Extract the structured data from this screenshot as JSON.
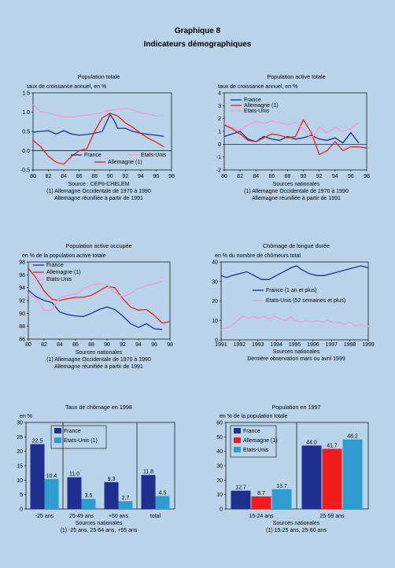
{
  "page": {
    "title": "Graphique 8",
    "subtitle": "Indicateurs démographiques"
  },
  "colors": {
    "france": "#1f2f8f",
    "allemagne": "#ee1c1c",
    "etatsunis": "#f39ad0",
    "etatsunis_bar": "#2f9ccf",
    "background": "#b9d3ea"
  },
  "chart_data": [
    {
      "id": "c1",
      "type": "line",
      "title": "Population totale",
      "ylabel": "taux de croissance annuel, en %",
      "ylim": [
        -0.5,
        1.5
      ],
      "yticks": [
        "-0.5",
        "0.0",
        "0.5",
        "1.0",
        "1.5"
      ],
      "xticks": [
        "80",
        "82",
        "84",
        "86",
        "88",
        "90",
        "92",
        "94",
        "96",
        "98"
      ],
      "series": [
        {
          "name": "France",
          "x": [
            80,
            81,
            82,
            83,
            84,
            85,
            86,
            87,
            88,
            89,
            90,
            90.5,
            91,
            92,
            93,
            94,
            95,
            96,
            97
          ],
          "values": [
            0.48,
            0.5,
            0.52,
            0.43,
            0.52,
            0.43,
            0.4,
            0.42,
            0.45,
            0.5,
            0.93,
            0.8,
            0.58,
            0.58,
            0.5,
            0.45,
            0.42,
            0.4,
            0.37
          ]
        },
        {
          "name": "Allemagne (1)",
          "x": [
            80,
            81,
            82,
            83,
            84,
            85,
            86,
            87,
            88,
            89,
            90,
            91,
            92,
            93,
            94,
            95,
            96,
            97
          ],
          "values": [
            0.27,
            0.1,
            -0.15,
            -0.3,
            -0.35,
            -0.15,
            0.0,
            0.05,
            0.5,
            0.85,
            0.97,
            0.9,
            0.72,
            0.6,
            0.45,
            0.32,
            0.22,
            0.1
          ]
        },
        {
          "name": "Etats-Unis",
          "x": [
            80,
            81,
            82,
            83,
            84,
            85,
            86,
            87,
            88,
            89,
            90,
            91,
            92,
            93,
            94,
            95,
            96,
            97
          ],
          "values": [
            1.2,
            1.0,
            0.98,
            0.92,
            0.88,
            0.88,
            0.9,
            0.92,
            0.95,
            0.98,
            1.05,
            1.08,
            1.1,
            1.05,
            0.98,
            0.95,
            0.9,
            0.9
          ]
        }
      ],
      "notes": [
        "Source : CEPII-CHELEM",
        "(1) Allemagne Occidentale de 1970 à 1990",
        "Allemagne réunifiée à partir de 1991"
      ]
    },
    {
      "id": "c2",
      "type": "line",
      "title": "Population active totale",
      "ylabel": "taux de croissance annuel, en %",
      "ylim": [
        -2,
        4
      ],
      "yticks": [
        "-2",
        "-1",
        "0",
        "1",
        "2",
        "3",
        "4"
      ],
      "xticks": [
        "80",
        "82",
        "84",
        "86",
        "88",
        "90",
        "92",
        "94",
        "96",
        "98"
      ],
      "series": [
        {
          "name": "France",
          "x": [
            80,
            81,
            82,
            83,
            84,
            85,
            86,
            87,
            88,
            89,
            90,
            91,
            92,
            93,
            94,
            95,
            96,
            97
          ],
          "values": [
            0.6,
            0.8,
            1.0,
            0.4,
            0.2,
            0.6,
            0.4,
            0.3,
            0.6,
            0.4,
            0.5,
            0.7,
            0.4,
            0.3,
            0.5,
            0.1,
            0.9,
            0.1
          ]
        },
        {
          "name": "Allemagne (1)",
          "x": [
            80,
            81,
            82,
            83,
            84,
            85,
            86,
            87,
            88,
            89,
            90,
            91,
            92,
            93,
            94,
            95,
            96,
            97,
            98
          ],
          "values": [
            1.5,
            1.2,
            0.8,
            0.3,
            0.2,
            0.5,
            0.8,
            0.7,
            0.5,
            0.6,
            1.9,
            0.9,
            -0.8,
            -0.5,
            0.2,
            -0.5,
            -0.2,
            -0.2,
            -0.3
          ]
        },
        {
          "name": "Etats-Unis",
          "x": [
            80,
            81,
            82,
            83,
            84,
            85,
            86,
            87,
            88,
            89,
            90,
            91,
            92,
            93,
            94,
            95,
            96,
            97
          ],
          "values": [
            1.6,
            1.3,
            1.1,
            1.5,
            1.8,
            1.6,
            1.8,
            1.7,
            1.5,
            1.7,
            1.2,
            0.4,
            1.3,
            0.9,
            1.3,
            1.0,
            1.2,
            1.7
          ]
        }
      ],
      "notes": [
        "Sources nationales",
        "(1) Allemagne Occidentale de 1970 à 1990",
        "Allemagne réunifiée à partir de 1991"
      ]
    },
    {
      "id": "c3",
      "type": "line",
      "title": "Population active occupée",
      "ylabel": "en % de la population active totale",
      "ylim": [
        86,
        98
      ],
      "yticks": [
        "86",
        "88",
        "90",
        "92",
        "94",
        "96",
        "98"
      ],
      "xticks": [
        "80",
        "82",
        "84",
        "86",
        "88",
        "90",
        "92",
        "94",
        "96",
        "98"
      ],
      "series": [
        {
          "name": "France",
          "x": [
            80,
            81,
            82,
            83,
            84,
            85,
            86,
            87,
            88,
            89,
            90,
            91,
            92,
            93,
            94,
            95,
            96,
            97
          ],
          "values": [
            93.6,
            92.6,
            92.0,
            91.7,
            90.2,
            89.8,
            89.6,
            89.5,
            90.0,
            90.6,
            91.0,
            90.6,
            89.6,
            88.4,
            87.8,
            88.4,
            87.6,
            87.5
          ]
        },
        {
          "name": "Allemagne (1)",
          "x": [
            80,
            81,
            82,
            83,
            84,
            85,
            86,
            87,
            88,
            89,
            90,
            91,
            92,
            93,
            94,
            95,
            96,
            97,
            98
          ],
          "values": [
            97.0,
            95.5,
            93.5,
            92.2,
            92.0,
            92.3,
            92.5,
            92.5,
            92.8,
            93.5,
            94.2,
            94.0,
            92.3,
            91.0,
            90.5,
            90.6,
            89.7,
            88.5,
            88.7
          ]
        },
        {
          "name": "Etats-Unis",
          "x": [
            80,
            81,
            82,
            83,
            84,
            85,
            86,
            87,
            88,
            89,
            90,
            91,
            92,
            93,
            94,
            95,
            96,
            97
          ],
          "values": [
            92.9,
            92.4,
            90.5,
            90.5,
            92.5,
            92.8,
            93.0,
            93.8,
            94.4,
            94.6,
            94.5,
            93.2,
            92.6,
            93.1,
            93.9,
            94.3,
            94.6,
            95.0
          ]
        }
      ],
      "notes": [
        "Sources nationales",
        "(1) Allemagne Occidentale de 1970 à 1990",
        "Allemagne réunifiée à partir de 1991"
      ]
    },
    {
      "id": "c4",
      "type": "line",
      "title": "Chômage de longue durée",
      "ylabel": "en % du nombre de chômeurs total",
      "ylim": [
        0,
        40
      ],
      "yticks": [
        "0",
        "10",
        "20",
        "30",
        "40"
      ],
      "xticks": [
        "1991",
        "1992",
        "1993",
        "1994",
        "1995",
        "1996",
        "1997",
        "1998",
        "1999"
      ],
      "series": [
        {
          "name": "France (1 an et plus)",
          "x": [
            1991.0,
            1991.3,
            1991.6,
            1992.0,
            1992.4,
            1992.8,
            1993.2,
            1993.6,
            1994.0,
            1994.4,
            1994.8,
            1995.1,
            1995.4,
            1995.8,
            1996.2,
            1996.6,
            1997.0,
            1997.4,
            1997.8,
            1998.2,
            1998.6,
            1999.0
          ],
          "values": [
            33,
            32,
            33,
            34,
            35,
            33,
            31,
            31,
            33,
            35,
            37,
            38,
            36,
            34,
            33,
            33,
            34,
            35,
            36,
            37,
            38,
            37
          ]
        },
        {
          "name": "Etats-Unis (52 semaines et plus)",
          "x": [
            1991.0,
            1991.2,
            1991.5,
            1991.8,
            1992.0,
            1992.2,
            1992.5,
            1992.8,
            1993.0,
            1993.3,
            1993.6,
            1993.9,
            1994.2,
            1994.5,
            1994.8,
            1995.0,
            1995.3,
            1995.6,
            1995.9,
            1996.2,
            1996.5,
            1996.8,
            1997.1,
            1997.4,
            1997.7,
            1998.0,
            1998.3,
            1998.6,
            1998.9,
            1999.1
          ],
          "values": [
            5,
            6,
            7,
            9,
            11,
            12,
            11,
            12,
            11,
            12,
            11,
            12,
            11,
            10,
            12,
            10,
            9,
            10,
            9,
            10,
            9,
            10,
            9,
            9,
            8,
            9,
            7,
            8,
            7,
            7
          ]
        }
      ],
      "notes": [
        "Sources nationales",
        "Dernière observation mars ou avril 1999"
      ]
    },
    {
      "id": "c5",
      "type": "bar",
      "title": "Taux de chômage en 1998",
      "ylabel": "en %",
      "ylim": [
        0,
        30
      ],
      "yticks": [
        "0",
        "5",
        "10",
        "15",
        "20",
        "25",
        "30"
      ],
      "categories": [
        "-25 ans",
        "25-49 ans",
        "+50 ans",
        "total"
      ],
      "series": [
        {
          "name": "France",
          "values": [
            22.5,
            11.0,
            9.3,
            11.8
          ],
          "labels": [
            "22.5",
            "11.0",
            "9.3",
            "11.8"
          ]
        },
        {
          "name": "Etats-Unis (1)",
          "values": [
            10.4,
            3.5,
            2.7,
            4.5
          ],
          "labels": [
            "10.4",
            "3.5",
            "2.7",
            "4.5"
          ]
        }
      ],
      "notes": [
        "Sources nationales",
        "(1) -25 ans, 25-54 ans, +55 ans"
      ]
    },
    {
      "id": "c6",
      "type": "bar",
      "title": "Population en 1997",
      "ylabel": "en % de la population totale",
      "ylim": [
        0,
        60
      ],
      "yticks": [
        "0",
        "10",
        "20",
        "30",
        "40",
        "50",
        "60"
      ],
      "categories": [
        "15-24 ans",
        "25-59 ans"
      ],
      "series": [
        {
          "name": "France",
          "values": [
            12.7,
            44.0
          ],
          "labels": [
            "12.7",
            "44.0"
          ]
        },
        {
          "name": "Allemagne (1)",
          "values": [
            8.7,
            41.7
          ],
          "labels": [
            "8.7",
            "41.7"
          ]
        },
        {
          "name": "Etats-Unis",
          "values": [
            13.7,
            48.2
          ],
          "labels": [
            "13.7",
            "48.2"
          ]
        }
      ],
      "notes": [
        "Sources nationales",
        "(1) 15-25 ans, 25-60 ans"
      ]
    }
  ]
}
